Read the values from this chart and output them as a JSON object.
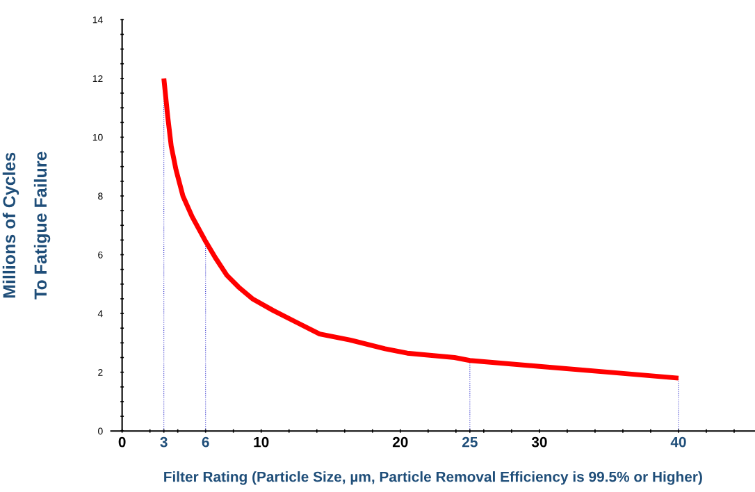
{
  "chart_data": {
    "type": "line",
    "xlabel": "Filter Rating (Particle Size, µm, Particle Removal Efficiency is 99.5% or Higher)",
    "ylabel": "Millions of Cycles\nTo Fatigue Failure",
    "series": [
      {
        "color": "#ff0000",
        "x": [
          3,
          3.28,
          3.53,
          3.87,
          4.37,
          5.03,
          5.95,
          6.7,
          7.53,
          8.37,
          9.37,
          10.87,
          12.53,
          14.2,
          16.35,
          18.9,
          20.5,
          23.9,
          25,
          30,
          35,
          40
        ],
        "values": [
          12,
          10.7,
          9.7,
          8.9,
          8.0,
          7.3,
          6.5,
          5.9,
          5.3,
          4.9,
          4.5,
          4.1,
          3.7,
          3.3,
          3.1,
          2.8,
          2.65,
          2.5,
          2.4,
          2.2,
          2.0,
          1.8
        ]
      }
    ],
    "xlim": [
      -0.8,
      45.5
    ],
    "ylim": [
      0,
      14
    ],
    "xticks": [
      0,
      {
        "value": 2,
        "label": null
      },
      {
        "value": 3,
        "label": "3"
      },
      {
        "value": 4,
        "label": null
      },
      {
        "value": 6,
        "label": "6"
      },
      {
        "value": 8,
        "label": null
      },
      10,
      {
        "value": 12,
        "label": null
      },
      {
        "value": 14,
        "label": null
      },
      {
        "value": 16,
        "label": null
      },
      {
        "value": 18,
        "label": null
      },
      20,
      {
        "value": 22,
        "label": null
      },
      {
        "value": 24,
        "label": null
      },
      {
        "value": 25,
        "label": "25"
      },
      {
        "value": 26,
        "label": null
      },
      {
        "value": 28,
        "label": null
      },
      30,
      {
        "value": 32,
        "label": null
      },
      {
        "value": 34,
        "label": null
      },
      {
        "value": 36,
        "label": null
      },
      {
        "value": 38,
        "label": null
      },
      40,
      {
        "value": 42,
        "label": null
      },
      {
        "value": 44,
        "label": null
      }
    ],
    "yticks": [
      0,
      {
        "value": 0.5,
        "label": null
      },
      {
        "value": 1,
        "label": null
      },
      {
        "value": 1.5,
        "label": null
      },
      2,
      {
        "value": 2.5,
        "label": null
      },
      {
        "value": 3,
        "label": null
      },
      {
        "value": 3.5,
        "label": null
      },
      4,
      {
        "value": 4.5,
        "label": null
      },
      {
        "value": 5,
        "label": null
      },
      {
        "value": 5.5,
        "label": null
      },
      6,
      {
        "value": 6.5,
        "label": null
      },
      {
        "value": 7,
        "label": null
      },
      {
        "value": 7.5,
        "label": null
      },
      8,
      {
        "value": 8.5,
        "label": null
      },
      {
        "value": 9,
        "label": null
      },
      {
        "value": 9.5,
        "label": null
      },
      10,
      {
        "value": 10.5,
        "label": null
      },
      {
        "value": 11,
        "label": null
      },
      {
        "value": 11.5,
        "label": null
      },
      12,
      {
        "value": 12.5,
        "label": null
      },
      {
        "value": 13,
        "label": null
      },
      {
        "value": 13.5,
        "label": null
      },
      14
    ],
    "ref_lines": [
      {
        "axis": "x",
        "value": 3,
        "label": null,
        "color": "#3333cc",
        "line_style": "dotted"
      },
      {
        "axis": "x",
        "value": 6,
        "label": null,
        "color": "#3333cc",
        "line_style": "dotted"
      },
      {
        "axis": "x",
        "value": 25,
        "label": null,
        "color": "#3333cc",
        "line_style": "dotted"
      },
      {
        "axis": "x",
        "value": 40,
        "label": null,
        "color": "#3333cc",
        "line_style": "dotted"
      }
    ],
    "grid": false,
    "legend": false,
    "marker": "none",
    "line_style": "solid"
  }
}
